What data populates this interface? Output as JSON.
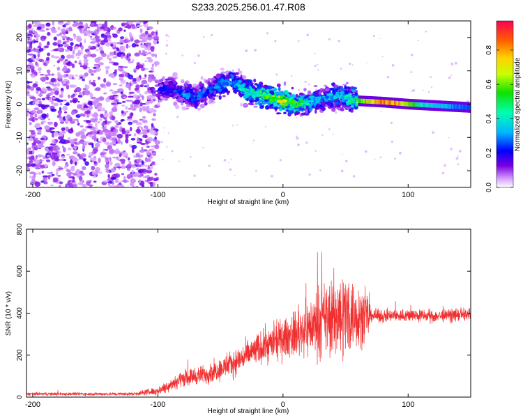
{
  "title": "S233.2025.256.01.47.R08",
  "chart_data": [
    {
      "id": "spectrogram",
      "type": "heatmap",
      "xlabel": "Height of straight line (km)",
      "ylabel": "Frequency (Hz)",
      "xlim": [
        -205,
        150
      ],
      "ylim": [
        -25,
        25
      ],
      "xticks": [
        -200,
        -100,
        0,
        100
      ],
      "yticks": [
        -20,
        -10,
        0,
        10,
        20
      ],
      "colorbar": {
        "label": "Normalized spectral amplitude",
        "range": [
          0,
          0.97
        ],
        "ticks": [
          0.0,
          0.2,
          0.4,
          0.6,
          0.8
        ]
      },
      "regions": [
        {
          "name": "noise",
          "x_range": [
            -205,
            -100
          ],
          "freq_range": [
            -25,
            25
          ],
          "amplitude": "low (0.0-0.15)"
        },
        {
          "name": "scattered-signal",
          "x_range": [
            -100,
            60
          ],
          "freq_range": [
            -8,
            10
          ],
          "amplitude": "0.1-0.9"
        },
        {
          "name": "narrowband-line",
          "x_range": [
            60,
            150
          ],
          "freq_range": [
            -1,
            1
          ],
          "amplitude": "0.2-0.95"
        }
      ],
      "ridge": {
        "x": [
          -100,
          -90,
          -80,
          -70,
          -60,
          -50,
          -40,
          -30,
          -20,
          -10,
          0,
          10,
          20,
          30,
          40,
          50,
          60,
          70,
          80,
          90,
          100,
          110,
          120,
          130,
          140,
          150
        ],
        "freq": [
          4,
          5,
          3,
          2,
          4,
          6,
          7,
          4,
          3,
          2,
          1,
          0,
          0.5,
          1.5,
          2.5,
          2,
          1,
          0.8,
          0.6,
          0.3,
          0,
          -0.2,
          -0.4,
          -0.6,
          -0.8,
          -1
        ],
        "amplitude": [
          0.2,
          0.25,
          0.3,
          0.3,
          0.3,
          0.35,
          0.35,
          0.45,
          0.55,
          0.65,
          0.75,
          0.6,
          0.45,
          0.35,
          0.4,
          0.45,
          0.6,
          0.75,
          0.9,
          0.85,
          0.65,
          0.45,
          0.4,
          0.35,
          0.3,
          0.28
        ]
      }
    },
    {
      "id": "snr",
      "type": "line",
      "xlabel": "Height of straight line (km)",
      "ylabel": "SNR (10 * v/v)",
      "xlim": [
        -205,
        150
      ],
      "ylim": [
        0,
        800
      ],
      "xticks": [
        -200,
        -100,
        0,
        100
      ],
      "yticks": [
        0,
        200,
        400,
        600,
        800
      ],
      "color": "#f03030",
      "envelope": {
        "x": [
          -205,
          -120,
          -100,
          -90,
          -80,
          -60,
          -40,
          -20,
          0,
          10,
          20,
          30,
          40,
          50,
          60,
          68,
          70,
          80,
          100,
          120,
          150
        ],
        "mean": [
          15,
          15,
          30,
          60,
          90,
          110,
          160,
          230,
          280,
          300,
          330,
          360,
          380,
          400,
          390,
          380,
          390,
          385,
          390,
          385,
          395
        ],
        "spread": [
          10,
          10,
          25,
          40,
          50,
          60,
          80,
          100,
          120,
          140,
          180,
          220,
          260,
          280,
          200,
          150,
          40,
          40,
          40,
          40,
          40
        ]
      }
    }
  ]
}
